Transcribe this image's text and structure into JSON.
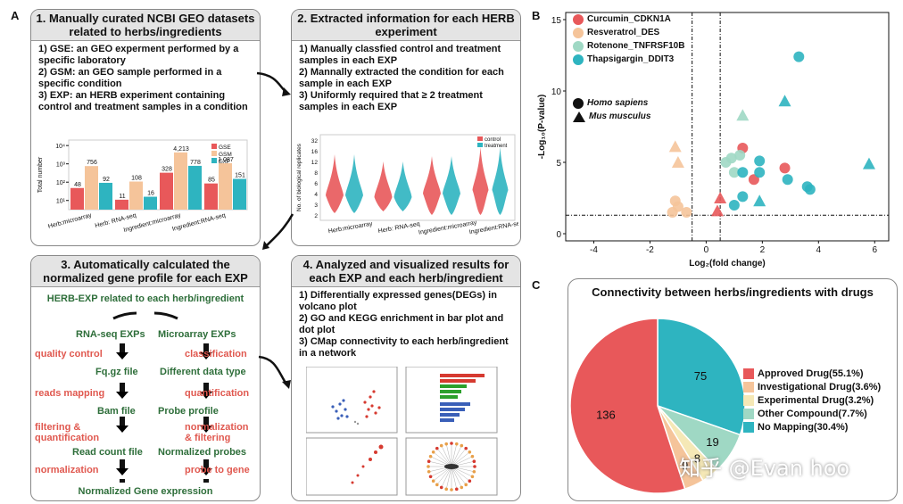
{
  "panel_labels": {
    "a": "A",
    "b": "B",
    "c": "C"
  },
  "box1": {
    "title": "1. Manually curated NCBI GEO datasets related to herbs/ingredients",
    "items": [
      "1) GSE: an GEO experment performed by a specific laboratory",
      "2) GSM: an GEO sample performed in a specific condition",
      "3) EXP: an HERB experiment containing control and treatment samples in a condition"
    ]
  },
  "box2": {
    "title": "2. Extracted information for each HERB experiment",
    "items": [
      "1) Manually classfied control and treatment samples in each EXP",
      "2) Mannally extracted the condition for each sample in each EXP",
      "3) Uniformly required that ≥ 2 treatment samples in each EXP"
    ]
  },
  "box3": {
    "title": "3. Automatically calculated the normalized gene profile for each EXP",
    "top": "HERB-EXP related to each herb/ingredient",
    "left_head": "RNA-seq EXPs",
    "right_head": "Microarray EXPs",
    "left_steps": [
      "Fq.gz file",
      "Bam file",
      "Read count file"
    ],
    "right_steps": [
      "Different data type",
      "Probe profile",
      "Normalized probes"
    ],
    "left_ops": [
      "quality control",
      "reads mapping",
      "filtering & quantification",
      "normalization"
    ],
    "right_ops": [
      "classification",
      "quantification",
      "normalization & filtering",
      "probe to gene"
    ],
    "bottom": "Normalized Gene expression"
  },
  "box4": {
    "title": "4. Analyzed and visualized results for each EXP and each herb/ingredient",
    "items": [
      "1) Differentially expressed genes(DEGs) in volcano plot",
      "2) GO and KEGG enrichment in bar plot and dot plot",
      "3) CMap connectivity to each herb/ingredient in a network"
    ]
  },
  "chart_data": [
    {
      "type": "bar",
      "title": "",
      "ylabel": "Total number",
      "yscale": "log",
      "ytick_labels": [
        "10¹",
        "10²",
        "10³",
        "10⁴"
      ],
      "categories": [
        "Herb:microarray",
        "Herb: RNA-seq",
        "Ingredient:microarray",
        "Ingredient:RNA-seq"
      ],
      "series": [
        {
          "name": "GSE",
          "color": "#e8585a",
          "values": [
            48,
            11,
            328,
            85
          ]
        },
        {
          "name": "GSM",
          "color": "#f5c49a",
          "values": [
            756,
            108,
            4213,
            1087
          ]
        },
        {
          "name": "EXP",
          "color": "#2eb4c0",
          "values": [
            92,
            16,
            778,
            151
          ]
        }
      ],
      "value_labels": [
        [
          "48",
          "756",
          "92"
        ],
        [
          "11",
          "108",
          "16"
        ],
        [
          "328",
          "4,213",
          "778"
        ],
        [
          "85",
          "1,087",
          "151"
        ]
      ]
    },
    {
      "type": "violin",
      "ylabel": "No. of biological replicates",
      "ytick_labels": [
        "2",
        "3",
        "4",
        "6",
        "8",
        "12",
        "16",
        "32"
      ],
      "categories": [
        "Herb:microarray",
        "Herb: RNA-seq",
        "Ingredient:microarray",
        "Ingredient:RNA-seq"
      ],
      "series": [
        {
          "name": "control",
          "color": "#e8585a"
        },
        {
          "name": "treatment",
          "color": "#2eb4c0"
        }
      ]
    },
    {
      "type": "scatter",
      "xlabel": "Log₂(fold change)",
      "ylabel": "-Log₁₀(P-value)",
      "xlim": [
        -5,
        6.5
      ],
      "ylim": [
        -0.5,
        15.5
      ],
      "xticks": [
        "-4",
        "-2",
        "0",
        "2",
        "4",
        "6"
      ],
      "yticks": [
        "0",
        "5",
        "10",
        "15"
      ],
      "xtick_values": [
        -4,
        -2,
        0,
        2,
        4,
        6
      ],
      "ytick_values": [
        0,
        5,
        10,
        15
      ],
      "vlines": [
        -0.5,
        0.5
      ],
      "hline": 1.3,
      "legend": [
        {
          "name": "Curcumin_CDKN1A",
          "color": "#e8585a"
        },
        {
          "name": "Resveratrol_DES",
          "color": "#f5c49a"
        },
        {
          "name": "Rotenone_TNFRSF10B",
          "color": "#9fd8c4"
        },
        {
          "name": "Thapsigargin_DDIT3",
          "color": "#2eb4c0"
        }
      ],
      "shape_legend": [
        {
          "shape": "circle",
          "name": "Homo sapiens"
        },
        {
          "shape": "triangle",
          "name": "Mus musculus"
        }
      ],
      "points": [
        {
          "s": 0,
          "m": "c",
          "x": 1.3,
          "y": 6.0
        },
        {
          "s": 0,
          "m": "c",
          "x": 1.7,
          "y": 3.8
        },
        {
          "s": 0,
          "m": "c",
          "x": 2.8,
          "y": 4.6
        },
        {
          "s": 0,
          "m": "t",
          "x": 0.5,
          "y": 2.5
        },
        {
          "s": 0,
          "m": "t",
          "x": 0.4,
          "y": 1.6
        },
        {
          "s": 1,
          "m": "t",
          "x": -1.1,
          "y": 6.1
        },
        {
          "s": 1,
          "m": "t",
          "x": -1.0,
          "y": 5.0
        },
        {
          "s": 1,
          "m": "c",
          "x": -1.1,
          "y": 2.3
        },
        {
          "s": 1,
          "m": "c",
          "x": -1.0,
          "y": 1.9
        },
        {
          "s": 1,
          "m": "c",
          "x": -1.2,
          "y": 1.5
        },
        {
          "s": 1,
          "m": "c",
          "x": -0.7,
          "y": 1.5
        },
        {
          "s": 2,
          "m": "t",
          "x": 1.3,
          "y": 8.3
        },
        {
          "s": 2,
          "m": "c",
          "x": 0.7,
          "y": 5.0
        },
        {
          "s": 2,
          "m": "c",
          "x": 0.9,
          "y": 5.3
        },
        {
          "s": 2,
          "m": "c",
          "x": 1.2,
          "y": 5.5
        },
        {
          "s": 2,
          "m": "c",
          "x": 1.0,
          "y": 4.3
        },
        {
          "s": 3,
          "m": "c",
          "x": 3.3,
          "y": 12.4
        },
        {
          "s": 3,
          "m": "t",
          "x": 2.8,
          "y": 9.3
        },
        {
          "s": 3,
          "m": "t",
          "x": 5.8,
          "y": 4.9
        },
        {
          "s": 3,
          "m": "c",
          "x": 1.3,
          "y": 4.3
        },
        {
          "s": 3,
          "m": "c",
          "x": 1.9,
          "y": 4.3
        },
        {
          "s": 3,
          "m": "c",
          "x": 1.9,
          "y": 5.1
        },
        {
          "s": 3,
          "m": "c",
          "x": 2.9,
          "y": 3.8
        },
        {
          "s": 3,
          "m": "c",
          "x": 3.6,
          "y": 3.3
        },
        {
          "s": 3,
          "m": "c",
          "x": 3.7,
          "y": 3.1
        },
        {
          "s": 3,
          "m": "c",
          "x": 1.3,
          "y": 2.6
        },
        {
          "s": 3,
          "m": "t",
          "x": 1.9,
          "y": 2.3
        },
        {
          "s": 3,
          "m": "c",
          "x": 1.0,
          "y": 2.0
        }
      ]
    },
    {
      "type": "pie",
      "title": "Connectivity between herbs/ingredients with drugs",
      "slices": [
        {
          "name": "Approved Drug(55.1%)",
          "value": 136,
          "color": "#e8585a"
        },
        {
          "name": "Investigational Drug(3.6%)",
          "value": 9,
          "color": "#f5c49a"
        },
        {
          "name": "Experimental Drug(3.2%)",
          "value": 8,
          "color": "#f5e8b6"
        },
        {
          "name": "Other Compound(7.7%)",
          "value": 19,
          "color": "#9fd8c4"
        },
        {
          "name": "No Mapping(30.4%)",
          "value": 75,
          "color": "#2eb4c0"
        }
      ]
    }
  ],
  "watermark": "知乎 @Evan hoo"
}
